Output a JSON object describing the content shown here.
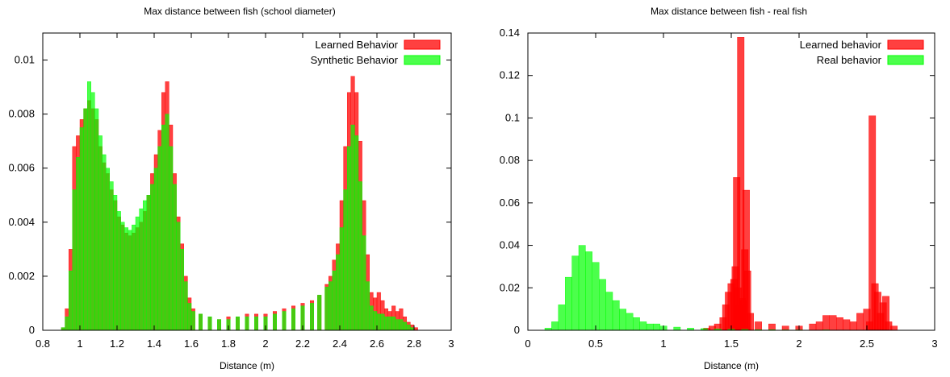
{
  "chart_data": [
    {
      "type": "bar",
      "title": "Max distance between fish (school diameter)",
      "xlabel": "Distance (m)",
      "ylabel": "",
      "xlim": [
        0.8,
        3.0
      ],
      "ylim": [
        0,
        0.011
      ],
      "xticks": [
        0.8,
        1.0,
        1.2,
        1.4,
        1.6,
        1.8,
        2.0,
        2.2,
        2.4,
        2.6,
        2.8,
        3.0
      ],
      "xtick_labels": [
        "0.8",
        "1",
        "1.2",
        "1.4",
        "1.6",
        "1.8",
        "2",
        "2.2",
        "2.4",
        "2.6",
        "2.8",
        "3"
      ],
      "yticks": [
        0,
        0.002,
        0.004,
        0.006,
        0.008,
        0.01
      ],
      "ytick_labels": [
        "0",
        "0.002",
        "0.004",
        "0.006",
        "0.008",
        "0.01"
      ],
      "legend_position": "top-right",
      "series": [
        {
          "name": "Learned Behavior",
          "color": "#ff0000",
          "points": [
            [
              0.91,
              0.0001
            ],
            [
              0.93,
              0.0008
            ],
            [
              0.95,
              0.003
            ],
            [
              0.97,
              0.0068
            ],
            [
              0.99,
              0.0072
            ],
            [
              1.01,
              0.0078
            ],
            [
              1.03,
              0.0082
            ],
            [
              1.05,
              0.0085
            ],
            [
              1.07,
              0.0082
            ],
            [
              1.09,
              0.0078
            ],
            [
              1.11,
              0.0068
            ],
            [
              1.13,
              0.0062
            ],
            [
              1.15,
              0.0058
            ],
            [
              1.17,
              0.0052
            ],
            [
              1.19,
              0.0048
            ],
            [
              1.21,
              0.0042
            ],
            [
              1.23,
              0.0039
            ],
            [
              1.25,
              0.0036
            ],
            [
              1.27,
              0.0035
            ],
            [
              1.29,
              0.0036
            ],
            [
              1.31,
              0.0038
            ],
            [
              1.33,
              0.004
            ],
            [
              1.35,
              0.0044
            ],
            [
              1.37,
              0.005
            ],
            [
              1.39,
              0.0058
            ],
            [
              1.41,
              0.0065
            ],
            [
              1.43,
              0.0074
            ],
            [
              1.45,
              0.0088
            ],
            [
              1.47,
              0.0092
            ],
            [
              1.49,
              0.0076
            ],
            [
              1.51,
              0.0058
            ],
            [
              1.53,
              0.0042
            ],
            [
              1.55,
              0.0032
            ],
            [
              1.57,
              0.002
            ],
            [
              1.59,
              0.0012
            ],
            [
              1.61,
              0.0008
            ],
            [
              1.65,
              0.0006
            ],
            [
              1.7,
              0.0005
            ],
            [
              1.75,
              0.0004
            ],
            [
              1.8,
              0.0005
            ],
            [
              1.85,
              0.0005
            ],
            [
              1.9,
              0.0006
            ],
            [
              1.95,
              0.0006
            ],
            [
              2.0,
              0.0006
            ],
            [
              2.05,
              0.0007
            ],
            [
              2.1,
              0.0008
            ],
            [
              2.15,
              0.0009
            ],
            [
              2.2,
              0.001
            ],
            [
              2.25,
              0.0011
            ],
            [
              2.29,
              0.0013
            ],
            [
              2.33,
              0.0017
            ],
            [
              2.35,
              0.002
            ],
            [
              2.37,
              0.0026
            ],
            [
              2.39,
              0.0032
            ],
            [
              2.41,
              0.0048
            ],
            [
              2.43,
              0.0068
            ],
            [
              2.45,
              0.0088
            ],
            [
              2.47,
              0.0094
            ],
            [
              2.49,
              0.0088
            ],
            [
              2.51,
              0.007
            ],
            [
              2.53,
              0.0048
            ],
            [
              2.55,
              0.0028
            ],
            [
              2.57,
              0.0014
            ],
            [
              2.59,
              0.0012
            ],
            [
              2.61,
              0.0014
            ],
            [
              2.63,
              0.0011
            ],
            [
              2.65,
              0.0008
            ],
            [
              2.67,
              0.0007
            ],
            [
              2.69,
              0.0009
            ],
            [
              2.71,
              0.0007
            ],
            [
              2.73,
              0.0008
            ],
            [
              2.75,
              0.0005
            ],
            [
              2.77,
              0.0003
            ],
            [
              2.79,
              0.0002
            ],
            [
              2.81,
              0.0001
            ]
          ]
        },
        {
          "name": "Synthetic Behavior",
          "color": "#00ff00",
          "points": [
            [
              0.91,
              0.0001
            ],
            [
              0.93,
              0.0005
            ],
            [
              0.95,
              0.0022
            ],
            [
              0.97,
              0.0052
            ],
            [
              0.99,
              0.0064
            ],
            [
              1.01,
              0.0075
            ],
            [
              1.03,
              0.0082
            ],
            [
              1.05,
              0.0092
            ],
            [
              1.07,
              0.0088
            ],
            [
              1.09,
              0.0082
            ],
            [
              1.11,
              0.0072
            ],
            [
              1.13,
              0.0065
            ],
            [
              1.15,
              0.006
            ],
            [
              1.17,
              0.0055
            ],
            [
              1.19,
              0.005
            ],
            [
              1.21,
              0.0044
            ],
            [
              1.23,
              0.004
            ],
            [
              1.25,
              0.0038
            ],
            [
              1.27,
              0.0037
            ],
            [
              1.29,
              0.0039
            ],
            [
              1.31,
              0.0042
            ],
            [
              1.33,
              0.0045
            ],
            [
              1.35,
              0.0048
            ],
            [
              1.37,
              0.005
            ],
            [
              1.39,
              0.0054
            ],
            [
              1.41,
              0.006
            ],
            [
              1.43,
              0.0068
            ],
            [
              1.45,
              0.0076
            ],
            [
              1.47,
              0.008
            ],
            [
              1.49,
              0.0068
            ],
            [
              1.51,
              0.0054
            ],
            [
              1.53,
              0.004
            ],
            [
              1.55,
              0.003
            ],
            [
              1.57,
              0.0018
            ],
            [
              1.59,
              0.001
            ],
            [
              1.61,
              0.0007
            ],
            [
              1.65,
              0.0006
            ],
            [
              1.7,
              0.0005
            ],
            [
              1.75,
              0.0004
            ],
            [
              1.8,
              0.0004
            ],
            [
              1.85,
              0.0005
            ],
            [
              1.9,
              0.0005
            ],
            [
              1.95,
              0.0005
            ],
            [
              2.0,
              0.0005
            ],
            [
              2.05,
              0.0006
            ],
            [
              2.1,
              0.0007
            ],
            [
              2.15,
              0.0008
            ],
            [
              2.2,
              0.0009
            ],
            [
              2.25,
              0.001
            ],
            [
              2.29,
              0.0013
            ],
            [
              2.33,
              0.0016
            ],
            [
              2.35,
              0.0018
            ],
            [
              2.37,
              0.0022
            ],
            [
              2.39,
              0.0028
            ],
            [
              2.41,
              0.0038
            ],
            [
              2.43,
              0.0052
            ],
            [
              2.45,
              0.0068
            ],
            [
              2.47,
              0.0076
            ],
            [
              2.49,
              0.0072
            ],
            [
              2.51,
              0.0055
            ],
            [
              2.53,
              0.0035
            ],
            [
              2.55,
              0.0018
            ],
            [
              2.57,
              0.0009
            ],
            [
              2.59,
              0.0007
            ],
            [
              2.61,
              0.0006
            ],
            [
              2.63,
              0.0006
            ],
            [
              2.65,
              0.0005
            ],
            [
              2.67,
              0.0005
            ],
            [
              2.69,
              0.0005
            ],
            [
              2.71,
              0.0004
            ],
            [
              2.73,
              0.0004
            ],
            [
              2.75,
              0.0003
            ],
            [
              2.77,
              0.0002
            ],
            [
              2.79,
              0.0001
            ]
          ]
        }
      ]
    },
    {
      "type": "bar",
      "title": "Max distance between fish - real fish",
      "xlabel": "Distance (m)",
      "ylabel": "",
      "xlim": [
        0,
        3.0
      ],
      "ylim": [
        0,
        0.14
      ],
      "xticks": [
        0,
        0.5,
        1.0,
        1.5,
        2.0,
        2.5,
        3.0
      ],
      "xtick_labels": [
        "0",
        "0.5",
        "1",
        "1.5",
        "2",
        "2.5",
        "3"
      ],
      "yticks": [
        0,
        0.02,
        0.04,
        0.06,
        0.08,
        0.1,
        0.12,
        0.14
      ],
      "ytick_labels": [
        "0",
        "0.02",
        "0.04",
        "0.06",
        "0.08",
        "0.1",
        "0.12",
        "0.14"
      ],
      "legend_position": "top-right",
      "series": [
        {
          "name": "Learned behavior",
          "color": "#ff0000",
          "points": [
            [
              1.32,
              0.001
            ],
            [
              1.36,
              0.002
            ],
            [
              1.4,
              0.003
            ],
            [
              1.44,
              0.006
            ],
            [
              1.46,
              0.012
            ],
            [
              1.48,
              0.018
            ],
            [
              1.5,
              0.022
            ],
            [
              1.52,
              0.024
            ],
            [
              1.53,
              0.03
            ],
            [
              1.54,
              0.072
            ],
            [
              1.55,
              0.02
            ],
            [
              1.56,
              0.012
            ],
            [
              1.57,
              0.138
            ],
            [
              1.58,
              0.015
            ],
            [
              1.59,
              0.014
            ],
            [
              1.6,
              0.038
            ],
            [
              1.61,
              0.066
            ],
            [
              1.62,
              0.028
            ],
            [
              1.64,
              0.008
            ],
            [
              1.7,
              0.004
            ],
            [
              1.8,
              0.003
            ],
            [
              1.9,
              0.002
            ],
            [
              2.0,
              0.002
            ],
            [
              2.1,
              0.003
            ],
            [
              2.15,
              0.004
            ],
            [
              2.2,
              0.007
            ],
            [
              2.25,
              0.007
            ],
            [
              2.3,
              0.006
            ],
            [
              2.35,
              0.005
            ],
            [
              2.4,
              0.004
            ],
            [
              2.45,
              0.008
            ],
            [
              2.5,
              0.01
            ],
            [
              2.52,
              0.004
            ],
            [
              2.54,
              0.101
            ],
            [
              2.56,
              0.022
            ],
            [
              2.58,
              0.018
            ],
            [
              2.6,
              0.008
            ],
            [
              2.62,
              0.013
            ],
            [
              2.64,
              0.016
            ],
            [
              2.66,
              0.004
            ],
            [
              2.7,
              0.002
            ]
          ]
        },
        {
          "name": "Real behavior",
          "color": "#00ff00",
          "points": [
            [
              0.15,
              0.001
            ],
            [
              0.2,
              0.004
            ],
            [
              0.25,
              0.012
            ],
            [
              0.3,
              0.025
            ],
            [
              0.35,
              0.035
            ],
            [
              0.4,
              0.04
            ],
            [
              0.45,
              0.037
            ],
            [
              0.5,
              0.032
            ],
            [
              0.55,
              0.024
            ],
            [
              0.6,
              0.018
            ],
            [
              0.65,
              0.014
            ],
            [
              0.7,
              0.01
            ],
            [
              0.75,
              0.008
            ],
            [
              0.8,
              0.006
            ],
            [
              0.85,
              0.004
            ],
            [
              0.9,
              0.003
            ],
            [
              0.95,
              0.003
            ],
            [
              1.0,
              0.002
            ],
            [
              1.1,
              0.0015
            ],
            [
              1.2,
              0.001
            ],
            [
              1.3,
              0.0008
            ],
            [
              1.4,
              0.0006
            ],
            [
              1.5,
              0.0005
            ],
            [
              1.6,
              0.0004
            ],
            [
              1.7,
              0.0003
            ],
            [
              1.8,
              0.0003
            ],
            [
              1.9,
              0.0002
            ],
            [
              2.0,
              0.0002
            ],
            [
              2.2,
              0.0002
            ],
            [
              2.4,
              0.0001
            ],
            [
              2.6,
              0.0001
            ]
          ]
        }
      ]
    }
  ]
}
